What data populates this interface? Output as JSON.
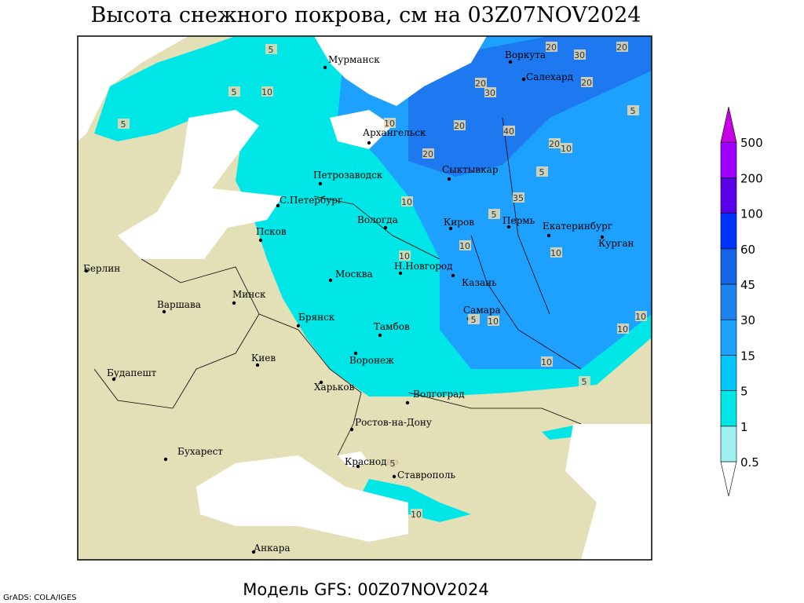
{
  "header": {
    "title": "Высота снежного покрова, см на 03Z07NOV2024"
  },
  "footer": {
    "model": "Модель GFS: 00Z07NOV2024",
    "credit": "GrADS: COLA/IGES"
  },
  "map": {
    "cities": [
      "Мурманск",
      "Воркута",
      "Салехард",
      "Архангельск",
      "Петрозаводск",
      "Сыктывкар",
      "С.Петербург",
      "Вологда",
      "Киров",
      "Пермь",
      "Екатеринбург",
      "Курган",
      "Псков",
      "Берлин",
      "Минск",
      "Москва",
      "Н.Новгород",
      "Казань",
      "Варшава",
      "Брянск",
      "Самара",
      "Тамбов",
      "Воронеж",
      "Киев",
      "Будапешт",
      "Харьков",
      "Волгоград",
      "Ростов-на-Дону",
      "Бухарест",
      "Краснодар",
      "Ставрополь",
      "Анкара"
    ],
    "contour_labels": [
      5,
      5,
      10,
      5,
      20,
      30,
      20,
      30,
      20,
      20,
      10,
      20,
      40,
      20,
      10,
      5,
      20,
      10,
      5,
      35,
      10,
      5,
      10,
      10,
      5,
      10,
      10,
      10,
      5,
      10,
      10,
      5
    ]
  },
  "legend": {
    "levels": [
      0.5,
      1,
      5,
      15,
      30,
      45,
      60,
      100,
      200,
      500
    ],
    "colors": [
      "#ffffff",
      "#9ff0f0",
      "#00e6e6",
      "#00c8ff",
      "#1ea0ff",
      "#1e82f0",
      "#1464e6",
      "#0032ff",
      "#5a00e6",
      "#a000ff",
      "#c800e6"
    ]
  }
}
